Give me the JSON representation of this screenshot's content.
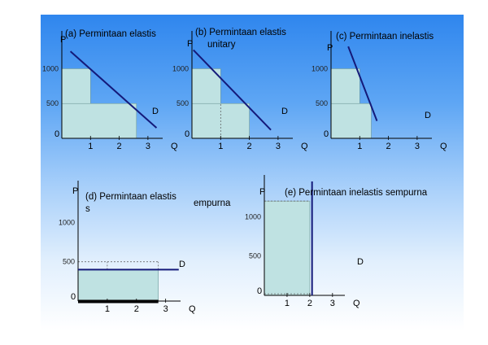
{
  "chart_data": [
    {
      "id": "a",
      "type": "line",
      "title_lines": [
        "(a) Permintaan elastis"
      ],
      "ylabel": "P",
      "xlabel": "Q",
      "curve_label": "D",
      "xticks": [
        {
          "v": 0,
          "t": "0"
        },
        {
          "v": 1,
          "t": "1"
        },
        {
          "v": 2,
          "t": "2"
        },
        {
          "v": 3,
          "t": "3"
        }
      ],
      "yticks": [
        {
          "v": 500,
          "t": "500"
        },
        {
          "v": 1000,
          "t": "1000"
        }
      ],
      "xlim": [
        0,
        3.4
      ],
      "ylim": [
        0,
        1450
      ],
      "demand_line": [
        [
          0.3,
          1250
        ],
        [
          3.3,
          150
        ]
      ],
      "shaded": [
        {
          "x": [
            0,
            1
          ],
          "y": [
            0,
            1000
          ]
        },
        {
          "x": [
            0,
            2.6
          ],
          "y": [
            0,
            500
          ]
        }
      ],
      "dashed": []
    },
    {
      "id": "b",
      "type": "line",
      "title_lines": [
        "(b) Permintaan elastis",
        "unitary"
      ],
      "ylabel": "P",
      "xlabel": "Q",
      "curve_label": "D",
      "xticks": [
        {
          "v": 0,
          "t": "0"
        },
        {
          "v": 1,
          "t": "1"
        },
        {
          "v": 2,
          "t": "2"
        },
        {
          "v": 3,
          "t": "3"
        }
      ],
      "yticks": [
        {
          "v": 500,
          "t": "500"
        },
        {
          "v": 1000,
          "t": "1000"
        }
      ],
      "xlim": [
        0,
        3.4
      ],
      "ylim": [
        0,
        1450
      ],
      "demand_line": [
        [
          0.05,
          1270
        ],
        [
          2.75,
          120
        ]
      ],
      "shaded": [
        {
          "x": [
            0,
            1
          ],
          "y": [
            0,
            1000
          ]
        },
        {
          "x": [
            0,
            2
          ],
          "y": [
            0,
            500
          ]
        }
      ],
      "dashed": [
        {
          "x1": 1,
          "y1": 0,
          "x2": 1,
          "y2": 500
        }
      ]
    },
    {
      "id": "c",
      "type": "line",
      "title_lines": [
        "(c) Permintaan inelastis"
      ],
      "ylabel": "P",
      "xlabel": "Q",
      "curve_label": "D",
      "xticks": [
        {
          "v": 0,
          "t": "0"
        },
        {
          "v": 1,
          "t": "1"
        },
        {
          "v": 2,
          "t": "2"
        },
        {
          "v": 3,
          "t": "3"
        }
      ],
      "yticks": [
        {
          "v": 500,
          "t": "500"
        },
        {
          "v": 1000,
          "t": "1000"
        }
      ],
      "xlim": [
        0,
        3.4
      ],
      "ylim": [
        0,
        1450
      ],
      "demand_line": [
        [
          0.6,
          1320
        ],
        [
          1.6,
          250
        ]
      ],
      "shaded": [
        {
          "x": [
            0,
            1
          ],
          "y": [
            0,
            1000
          ]
        },
        {
          "x": [
            0,
            1.4
          ],
          "y": [
            0,
            500
          ]
        }
      ],
      "dashed": []
    },
    {
      "id": "d",
      "type": "line",
      "title_lines": [
        "(d) Permintaan elastis",
        "s"
      ],
      "title_extra": "empurna",
      "ylabel": "P",
      "xlabel": "Q",
      "curve_label": "D",
      "xticks": [
        {
          "v": 0,
          "t": "0"
        },
        {
          "v": 1,
          "t": "1"
        },
        {
          "v": 2,
          "t": "2"
        },
        {
          "v": 3,
          "t": "3"
        }
      ],
      "yticks": [
        {
          "v": 500,
          "t": "500"
        },
        {
          "v": 1000,
          "t": "1000"
        }
      ],
      "xlim": [
        0,
        3.4
      ],
      "ylim": [
        0,
        1450
      ],
      "demand_line": [
        [
          0,
          400
        ],
        [
          3.45,
          400
        ]
      ],
      "shaded": [
        {
          "x": [
            0,
            2.75
          ],
          "y": [
            0,
            400
          ]
        }
      ],
      "dashed": [
        {
          "x1": 0,
          "y1": 500,
          "x2": 2.75,
          "y2": 500
        },
        {
          "x1": 1,
          "y1": 400,
          "x2": 1,
          "y2": 500
        },
        {
          "x1": 2.75,
          "y1": 400,
          "x2": 2.75,
          "y2": 500
        }
      ],
      "thick_axis": true
    },
    {
      "id": "e",
      "type": "line",
      "title_lines": [
        "(e) Permintaan inelastis sempurna"
      ],
      "ylabel": "P",
      "xlabel": "Q",
      "curve_label": "D",
      "xticks": [
        {
          "v": 0,
          "t": "0"
        },
        {
          "v": 1,
          "t": "1"
        },
        {
          "v": 2,
          "t": "2"
        },
        {
          "v": 3,
          "t": "3"
        }
      ],
      "yticks": [
        {
          "v": 500,
          "t": "500"
        },
        {
          "v": 1000,
          "t": "1000"
        }
      ],
      "xlim": [
        0,
        3.4
      ],
      "ylim": [
        0,
        1450
      ],
      "demand_line": [
        [
          2.1,
          0
        ],
        [
          2.1,
          1450
        ]
      ],
      "shaded": [
        {
          "x": [
            0,
            2.0
          ],
          "y": [
            0,
            1200
          ]
        }
      ],
      "dashed": [
        {
          "x1": 0,
          "y1": 1200,
          "x2": 2.0,
          "y2": 1200
        },
        {
          "x1": 0,
          "y1": 20,
          "x2": 2.0,
          "y2": 20
        }
      ]
    }
  ],
  "colors": {
    "shade_fill": "#bfe2e2",
    "shade_stroke": "#6f9a9a",
    "demand_line": "#141a7a",
    "axis": "#000000"
  }
}
